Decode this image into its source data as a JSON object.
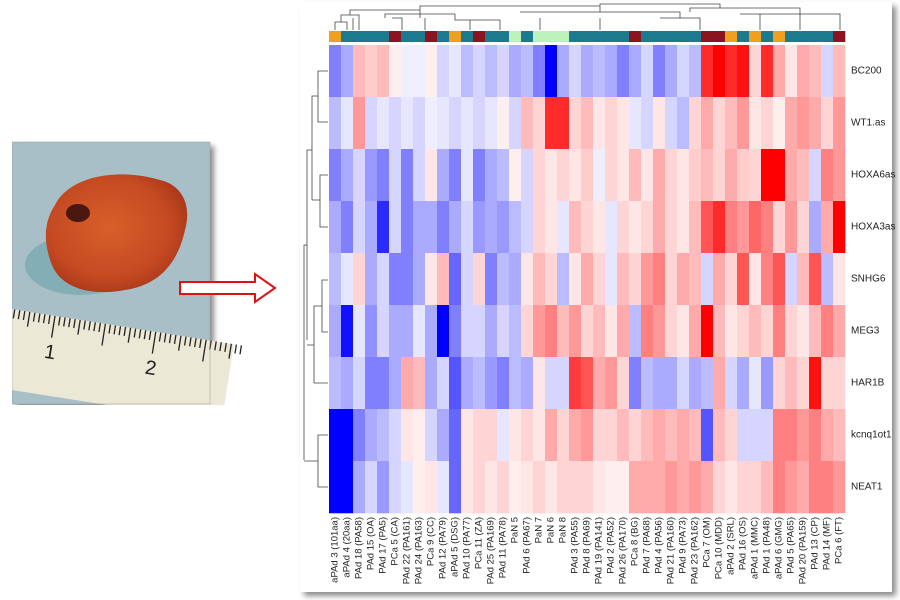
{
  "chart_data": {
    "type": "heatmap",
    "rows": [
      "BC200",
      "WT1.as",
      "HOXA6as",
      "HOXA3as",
      "SNHG6",
      "MEG3",
      "HAR1B",
      "kcnq1ot1",
      "NEAT1"
    ],
    "columns": [
      "aPAd 3 (101aa)",
      "aPAd 4 (20aa)",
      "PAd 18 (PA58)",
      "PAd 15 (OA)",
      "PAd 17 (PA5)",
      "PCa 5 (CA)",
      "PAd 22 (PA161)",
      "PAd 24 (PA163)",
      "PCa 9 (CC)",
      "PAd 12 (PA79)",
      "aPAd 5 (DSG)",
      "PAd 10 (PA77)",
      "PCa 11 (ZA)",
      "PAd 25 (PA169)",
      "PAd 11 (PA78)",
      "PaN 5",
      "PAd 6 (PA67)",
      "PaN 7",
      "PaN 6",
      "PaN 8",
      "PAd 3 (PA55)",
      "PAd 8 (PA69)",
      "PAd 19 (PA141)",
      "PAd 2 (PA52)",
      "PAd 26 (PA170)",
      "PCa 8 (BG)",
      "PAd 7 (PA68)",
      "PAd 4 (PA56)",
      "PAd 21 (PA160)",
      "PAd 9 (PA73)",
      "PAd 23 (PA162)",
      "PCa 7 (OM)",
      "PCa 10 (MDD)",
      "aPAd 2 (SRL)",
      "PAd 16 (OS)",
      "aPAd 1 (MMC)",
      "PAd 1 (PA48)",
      "aPAd 6 (GMG)",
      "PAd 5 (PA65)",
      "PAd 20 (PA159)",
      "PAd 13 (CP)",
      "PAd 14 (MF)",
      "PCa 6 (FT)"
    ],
    "column_colors": [
      "#f0a01e",
      "#1b7a8e",
      "#1b7a8e",
      "#1b7a8e",
      "#1b7a8e",
      "#8b1420",
      "#1b7a8e",
      "#1b7a8e",
      "#8b1420",
      "#1b7a8e",
      "#f0a01e",
      "#1b7a8e",
      "#8b1420",
      "#1b7a8e",
      "#1b7a8e",
      "#bdf2bd",
      "#1b7a8e",
      "#bdf2bd",
      "#bdf2bd",
      "#bdf2bd",
      "#1b7a8e",
      "#1b7a8e",
      "#1b7a8e",
      "#1b7a8e",
      "#1b7a8e",
      "#8b1420",
      "#1b7a8e",
      "#1b7a8e",
      "#1b7a8e",
      "#1b7a8e",
      "#1b7a8e",
      "#8b1420",
      "#8b1420",
      "#f0a01e",
      "#1b7a8e",
      "#f0a01e",
      "#1b7a8e",
      "#f0a01e",
      "#1b7a8e",
      "#1b7a8e",
      "#1b7a8e",
      "#1b7a8e",
      "#8b1420"
    ],
    "colormap": [
      "#0000ff",
      "#ffffff",
      "#ff0000"
    ],
    "zlim": [
      -3,
      3
    ],
    "values": [
      [
        -1.5,
        -1,
        0.8,
        0.6,
        0.8,
        0.2,
        -0.2,
        -0.2,
        0.2,
        -0.5,
        -0.3,
        -0.8,
        -0.5,
        -0.8,
        -0.5,
        -1,
        -0.8,
        -1.5,
        -3,
        -1,
        -0.5,
        -1,
        -0.8,
        -1,
        -1.5,
        -1,
        -0.5,
        -1.5,
        -1,
        -0.5,
        -0.8,
        2.5,
        3,
        2.5,
        2.8,
        0.5,
        2.5,
        1,
        0.3,
        1,
        0.8,
        -0.5,
        0.8
      ],
      [
        -0.8,
        -0.3,
        1.2,
        -0.5,
        -0.3,
        -0.5,
        -0.3,
        -0.5,
        -0.2,
        -0.3,
        -0.5,
        -0.3,
        -0.5,
        -0.3,
        0.2,
        -0.5,
        0.8,
        0.5,
        2.5,
        2.5,
        0.5,
        0.8,
        0.3,
        0.5,
        0.3,
        -0.3,
        -0.5,
        0.3,
        -0.5,
        -0.8,
        0.5,
        1,
        0.5,
        0.8,
        1.2,
        0.3,
        0.5,
        0.2,
        1,
        1.2,
        1,
        0.5,
        1.2
      ],
      [
        -1.5,
        -1,
        -0.5,
        -1.2,
        -1.5,
        -0.5,
        -1.5,
        -0.5,
        0.3,
        -1,
        -1.5,
        -0.3,
        -1.5,
        -1,
        -0.8,
        0.2,
        -0.5,
        0.5,
        0.3,
        0.5,
        0.3,
        0.6,
        -0.2,
        0.5,
        0.3,
        0.8,
        0.3,
        1,
        0.5,
        0.3,
        0.6,
        0.8,
        0.5,
        1,
        0.6,
        0.5,
        3,
        3,
        1,
        0.8,
        -0.5,
        1.5,
        1.2
      ],
      [
        -1,
        -1.5,
        -0.5,
        -1,
        -2.5,
        -0.5,
        -1.5,
        -1,
        -1,
        -1.5,
        -1,
        -0.5,
        -1.2,
        -1,
        -1.2,
        -0.8,
        -0.5,
        0.5,
        0.3,
        -0.3,
        0.8,
        0.5,
        0.3,
        -0.3,
        0.5,
        0.3,
        0.5,
        1,
        0.5,
        0.3,
        0.8,
        2,
        2.5,
        1.5,
        1.2,
        1.8,
        1.5,
        0.5,
        1.2,
        0.5,
        -1,
        1,
        3
      ],
      [
        -0.8,
        -0.3,
        0.5,
        -1,
        -0.5,
        -1.5,
        -1.5,
        -1,
        0.3,
        0.8,
        -1.8,
        -0.5,
        0.5,
        -1.5,
        -0.8,
        -1,
        0.3,
        0.8,
        0.5,
        -0.8,
        0.3,
        1,
        0.5,
        -0.3,
        0.8,
        0.5,
        1.2,
        1.5,
        0.5,
        1,
        0.8,
        -0.5,
        1,
        0.5,
        2,
        0.3,
        1.5,
        2,
        -0.5,
        0.8,
        2,
        -0.8,
        0.3
      ],
      [
        -1,
        -2.8,
        -0.3,
        -1.3,
        -0.5,
        -1,
        -1,
        -0.3,
        -1,
        -3,
        -1.5,
        -0.5,
        -0.5,
        -1,
        -0.5,
        -0.8,
        0.5,
        1.2,
        1.5,
        0.8,
        1.2,
        0.5,
        0.8,
        0.3,
        1,
        -0.8,
        1.5,
        1.2,
        0.5,
        0.3,
        1,
        3,
        0.8,
        0.3,
        0.5,
        0.8,
        0.5,
        1.5,
        0.5,
        0.3,
        0.8,
        1.5,
        1
      ],
      [
        -0.8,
        -1,
        -0.5,
        -1.5,
        -1.5,
        -1,
        1,
        0.8,
        -1,
        -0.5,
        -2,
        -1,
        -0.8,
        -1.2,
        -1.5,
        -0.8,
        -1,
        0.3,
        -0.5,
        -0.5,
        2.3,
        2,
        1,
        1.2,
        0.5,
        -1.5,
        -0.8,
        -1,
        -1,
        -0.5,
        -1,
        -0.8,
        1,
        -0.5,
        -1,
        -0.3,
        -1.2,
        0.5,
        0.8,
        0.5,
        2.8,
        0.5,
        0.5
      ],
      [
        -3,
        -3,
        -1.5,
        -1,
        -0.8,
        -0.5,
        0.3,
        0.2,
        -0.5,
        -1,
        -1.8,
        0.3,
        0.5,
        0.5,
        -0.3,
        0.3,
        0.5,
        0.3,
        1,
        0.5,
        1,
        1.2,
        0.5,
        0.5,
        0.8,
        0.5,
        0.8,
        1,
        0.8,
        1,
        0.8,
        -2,
        0.8,
        0.5,
        -0.5,
        -0.5,
        -0.5,
        1.5,
        1.5,
        1.2,
        1.5,
        1,
        0.8
      ],
      [
        -3,
        -3,
        -1,
        -0.5,
        -1.2,
        -0.5,
        -0.3,
        0.2,
        0.3,
        -0.3,
        -1.8,
        0.3,
        0.5,
        0.3,
        0.5,
        0.2,
        0.3,
        0.5,
        0.3,
        0.5,
        0.5,
        0.5,
        0.3,
        0.2,
        0.2,
        1,
        1,
        1,
        1.2,
        1,
        1.2,
        1,
        0.5,
        0.3,
        0.5,
        0.5,
        0.8,
        1.5,
        1.2,
        1,
        1.5,
        1.5,
        1.2
      ]
    ]
  },
  "photo": {
    "ruler_labels": [
      "1",
      "2"
    ]
  }
}
